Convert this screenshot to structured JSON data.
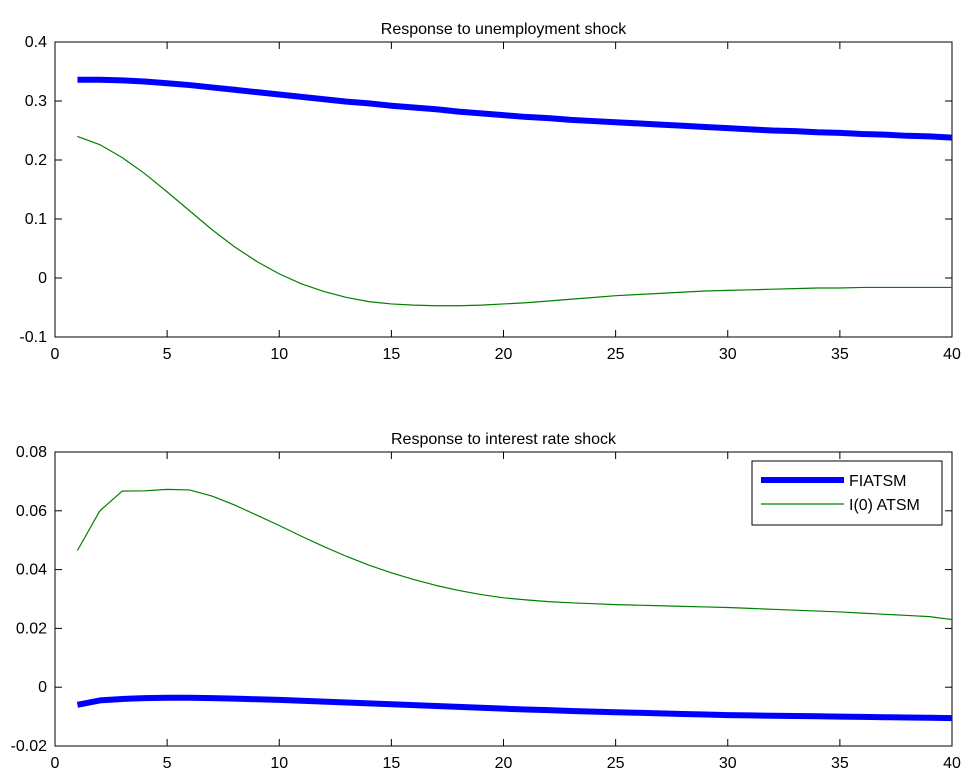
{
  "chart_data": [
    {
      "type": "line",
      "title": "Response to unemployment shock",
      "xlabel": "",
      "ylabel": "",
      "xlim": [
        0,
        40
      ],
      "ylim": [
        -0.1,
        0.4
      ],
      "xticks": [
        0,
        5,
        10,
        15,
        20,
        25,
        30,
        35,
        40
      ],
      "yticks": [
        -0.1,
        0,
        0.1,
        0.2,
        0.3,
        0.4
      ],
      "ytick_labels": [
        "-0.1",
        "0",
        "0.1",
        "0.2",
        "0.3",
        "0.4"
      ],
      "grid": false,
      "legend": null,
      "x": [
        1,
        2,
        3,
        4,
        5,
        6,
        7,
        8,
        9,
        10,
        11,
        12,
        13,
        14,
        15,
        16,
        17,
        18,
        19,
        20,
        21,
        22,
        23,
        24,
        25,
        26,
        27,
        28,
        29,
        30,
        31,
        32,
        33,
        34,
        35,
        36,
        37,
        38,
        39,
        40
      ],
      "series": [
        {
          "color": "#0000ff",
          "width": 6,
          "values": [
            0.336,
            0.336,
            0.335,
            0.333,
            0.33,
            0.327,
            0.323,
            0.319,
            0.315,
            0.311,
            0.307,
            0.303,
            0.299,
            0.296,
            0.292,
            0.289,
            0.286,
            0.282,
            0.279,
            0.276,
            0.273,
            0.271,
            0.268,
            0.266,
            0.264,
            0.262,
            0.26,
            0.258,
            0.256,
            0.254,
            0.252,
            0.25,
            0.249,
            0.247,
            0.246,
            0.244,
            0.243,
            0.241,
            0.24,
            0.238
          ]
        },
        {
          "color": "#008000",
          "width": 1.2,
          "values": [
            0.24,
            0.226,
            0.204,
            0.177,
            0.146,
            0.114,
            0.082,
            0.053,
            0.028,
            0.007,
            -0.01,
            -0.023,
            -0.033,
            -0.04,
            -0.044,
            -0.046,
            -0.047,
            -0.047,
            -0.046,
            -0.044,
            -0.042,
            -0.039,
            -0.036,
            -0.033,
            -0.03,
            -0.028,
            -0.026,
            -0.024,
            -0.022,
            -0.021,
            -0.02,
            -0.019,
            -0.018,
            -0.017,
            -0.017,
            -0.016,
            -0.016,
            -0.016,
            -0.016,
            -0.016
          ]
        }
      ]
    },
    {
      "type": "line",
      "title": "Response to interest rate shock",
      "xlabel": "",
      "ylabel": "",
      "xlim": [
        0,
        40
      ],
      "ylim": [
        -0.02,
        0.08
      ],
      "xticks": [
        0,
        5,
        10,
        15,
        20,
        25,
        30,
        35,
        40
      ],
      "yticks": [
        -0.02,
        0,
        0.02,
        0.04,
        0.06,
        0.08
      ],
      "ytick_labels": [
        "-0.02",
        "0",
        "0.02",
        "0.04",
        "0.06",
        "0.08"
      ],
      "grid": false,
      "legend": "top-right",
      "x": [
        1,
        2,
        3,
        4,
        5,
        6,
        7,
        8,
        9,
        10,
        11,
        12,
        13,
        14,
        15,
        16,
        17,
        18,
        19,
        20,
        21,
        22,
        23,
        24,
        25,
        26,
        27,
        28,
        29,
        30,
        31,
        32,
        33,
        34,
        35,
        36,
        37,
        38,
        39,
        40
      ],
      "series": [
        {
          "name": "FIATSM",
          "color": "#0000ff",
          "width": 6,
          "values": [
            -0.006,
            -0.0045,
            -0.004,
            -0.0037,
            -0.0036,
            -0.0036,
            -0.0037,
            -0.0039,
            -0.0041,
            -0.0043,
            -0.0046,
            -0.0049,
            -0.0052,
            -0.0055,
            -0.0058,
            -0.0061,
            -0.0064,
            -0.0067,
            -0.007,
            -0.0073,
            -0.0076,
            -0.0078,
            -0.0081,
            -0.0083,
            -0.0085,
            -0.0087,
            -0.0089,
            -0.0091,
            -0.0093,
            -0.0095,
            -0.0096,
            -0.0097,
            -0.0098,
            -0.0099,
            -0.01,
            -0.0101,
            -0.0102,
            -0.0103,
            -0.0104,
            -0.0105
          ]
        },
        {
          "name": "I(0) ATSM",
          "color": "#008000",
          "width": 1.2,
          "values": [
            0.0465,
            0.06,
            0.0667,
            0.0668,
            0.0673,
            0.0671,
            0.065,
            0.062,
            0.0585,
            0.055,
            0.0513,
            0.0478,
            0.0445,
            0.0415,
            0.0389,
            0.0366,
            0.0346,
            0.0329,
            0.0315,
            0.0304,
            0.0297,
            0.0291,
            0.0287,
            0.0284,
            0.0281,
            0.0279,
            0.0277,
            0.0275,
            0.0273,
            0.0271,
            0.0268,
            0.0265,
            0.0262,
            0.0259,
            0.0256,
            0.0252,
            0.0248,
            0.0244,
            0.024,
            0.023
          ]
        }
      ]
    }
  ]
}
